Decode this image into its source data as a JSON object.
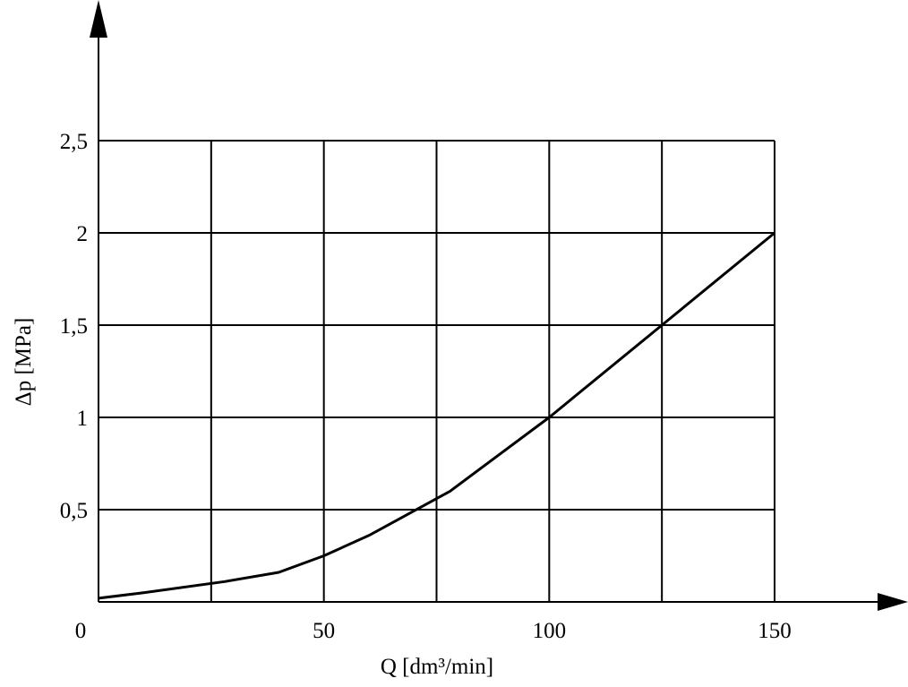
{
  "chart_data": {
    "type": "line",
    "title": "",
    "xlabel": "Q [dm³/min]",
    "ylabel": "Δp [MPa]",
    "xlim": [
      0,
      150
    ],
    "ylim": [
      0,
      2.5
    ],
    "grid": true,
    "x_ticks": [
      25,
      50,
      75,
      100,
      125,
      150
    ],
    "y_ticks": [
      0.5,
      1,
      1.5,
      2,
      2.5
    ],
    "x_tick_labels": [
      "0",
      "50",
      "100",
      "150"
    ],
    "x_tick_label_values": [
      0,
      50,
      100,
      150
    ],
    "y_tick_labels": [
      "0,5",
      "1",
      "1,5",
      "2",
      "2,5"
    ],
    "y_tick_label_values": [
      0.5,
      1,
      1.5,
      2,
      2.5
    ],
    "series": [
      {
        "x": [
          0,
          10,
          28,
          40,
          50,
          60,
          78,
          100,
          125,
          150
        ],
        "y": [
          0.02,
          0.05,
          0.11,
          0.16,
          0.25,
          0.36,
          0.6,
          1.0,
          1.5,
          2.0
        ]
      }
    ]
  }
}
